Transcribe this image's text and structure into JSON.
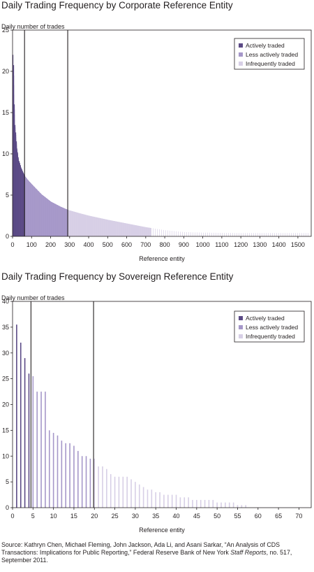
{
  "source": {
    "prefix": "Source: Kathryn Chen, Michael Fleming, John Jackson, Ada Li, and Asani Sarkar, “An Analysis of CDS Transactions: Implications for Public Reporting,” Federal Reserve Bank of New York ",
    "italic": "Staff Reports",
    "suffix": ", no. 517, September 2011."
  },
  "colors": {
    "actively": "#5b4a86",
    "less": "#a597c9",
    "infrequent": "#d7cfe6",
    "axis": "#231f20"
  },
  "chart_data": [
    {
      "type": "bar",
      "title": "Daily Trading Frequency by Corporate Reference Entity",
      "ylabel": "Daily number of trades",
      "xlabel": "Reference entity",
      "xlim": [
        0,
        1570
      ],
      "ylim": [
        0,
        25
      ],
      "xticks": [
        0,
        100,
        200,
        300,
        400,
        500,
        600,
        700,
        800,
        900,
        1000,
        1100,
        1200,
        1300,
        1400,
        1500
      ],
      "yticks": [
        0,
        5,
        10,
        15,
        20,
        25
      ],
      "dividers": [
        63,
        290
      ],
      "legend": {
        "position": "top-right",
        "entries": [
          "Actively traded",
          "Less actively traded",
          "Infrequently traded"
        ]
      },
      "curve": {
        "x": [
          1,
          3,
          6,
          10,
          15,
          20,
          30,
          45,
          63,
          80,
          100,
          150,
          200,
          250,
          290,
          350,
          400,
          500,
          600,
          700,
          800,
          900,
          1000,
          1100,
          1200,
          1300,
          1400,
          1500,
          1560
        ],
        "y": [
          22,
          19.5,
          16,
          13.5,
          12,
          10.8,
          9.3,
          8.2,
          7.3,
          6.8,
          6.3,
          5.1,
          4.2,
          3.6,
          3.2,
          2.8,
          2.5,
          2.0,
          1.55,
          1.1,
          0.75,
          0.52,
          0.45,
          0.42,
          0.4,
          0.4,
          0.4,
          0.4,
          0.4
        ]
      }
    },
    {
      "type": "bar",
      "title": "Daily Trading Frequency by Sovereign Reference Entity",
      "ylabel": "Daily number of trades",
      "xlabel": "Reference entity",
      "xlim": [
        0,
        73
      ],
      "ylim": [
        0,
        40
      ],
      "xticks": [
        0,
        5,
        10,
        15,
        20,
        25,
        30,
        35,
        40,
        45,
        50,
        55,
        60,
        65,
        70
      ],
      "yticks": [
        0,
        5,
        10,
        15,
        20,
        25,
        30,
        35,
        40
      ],
      "dividers": [
        4.5,
        19.8
      ],
      "legend": {
        "position": "top-right",
        "entries": [
          "Actively traded",
          "Less actively traded",
          "Infrequently traded"
        ]
      },
      "x": [
        1,
        2,
        3,
        4,
        5,
        6,
        7,
        8,
        9,
        10,
        11,
        12,
        13,
        14,
        15,
        16,
        17,
        18,
        19,
        20,
        21,
        22,
        23,
        24,
        25,
        26,
        27,
        28,
        29,
        30,
        31,
        32,
        33,
        34,
        35,
        36,
        37,
        38,
        39,
        40,
        41,
        42,
        43,
        44,
        45,
        46,
        47,
        48,
        49,
        50,
        51,
        52,
        53,
        54,
        55,
        56,
        57
      ],
      "values": [
        35.5,
        32,
        29,
        26,
        25.5,
        22.5,
        22.5,
        22.5,
        15,
        14.5,
        14,
        13,
        12.5,
        12.5,
        12,
        11,
        10,
        10,
        9.5,
        9.5,
        8,
        8,
        7.5,
        6.5,
        6,
        6,
        6,
        6,
        5.5,
        5,
        4.5,
        4,
        3.5,
        3.5,
        3,
        3,
        2.5,
        2.5,
        2.5,
        2.5,
        2,
        2,
        2,
        1.5,
        1.5,
        1.5,
        1.5,
        1.5,
        1.5,
        1,
        1,
        1,
        1,
        1,
        0.5,
        0.5,
        0.5
      ],
      "categories": [
        "Actively traded",
        "Actively traded",
        "Actively traded",
        "Actively traded",
        "Less actively traded",
        "Less actively traded",
        "Less actively traded",
        "Less actively traded",
        "Less actively traded",
        "Less actively traded",
        "Less actively traded",
        "Less actively traded",
        "Less actively traded",
        "Less actively traded",
        "Less actively traded",
        "Less actively traded",
        "Less actively traded",
        "Less actively traded",
        "Less actively traded",
        "Infrequently traded",
        "Infrequently traded",
        "Infrequently traded",
        "Infrequently traded",
        "Infrequently traded",
        "Infrequently traded",
        "Infrequently traded",
        "Infrequently traded",
        "Infrequently traded",
        "Infrequently traded",
        "Infrequently traded",
        "Infrequently traded",
        "Infrequently traded",
        "Infrequently traded",
        "Infrequently traded",
        "Infrequently traded",
        "Infrequently traded",
        "Infrequently traded",
        "Infrequently traded",
        "Infrequently traded",
        "Infrequently traded",
        "Infrequently traded",
        "Infrequently traded",
        "Infrequently traded",
        "Infrequently traded",
        "Infrequently traded",
        "Infrequently traded",
        "Infrequently traded",
        "Infrequently traded",
        "Infrequently traded",
        "Infrequently traded",
        "Infrequently traded",
        "Infrequently traded",
        "Infrequently traded",
        "Infrequently traded",
        "Infrequently traded",
        "Infrequently traded",
        "Infrequently traded"
      ]
    }
  ]
}
